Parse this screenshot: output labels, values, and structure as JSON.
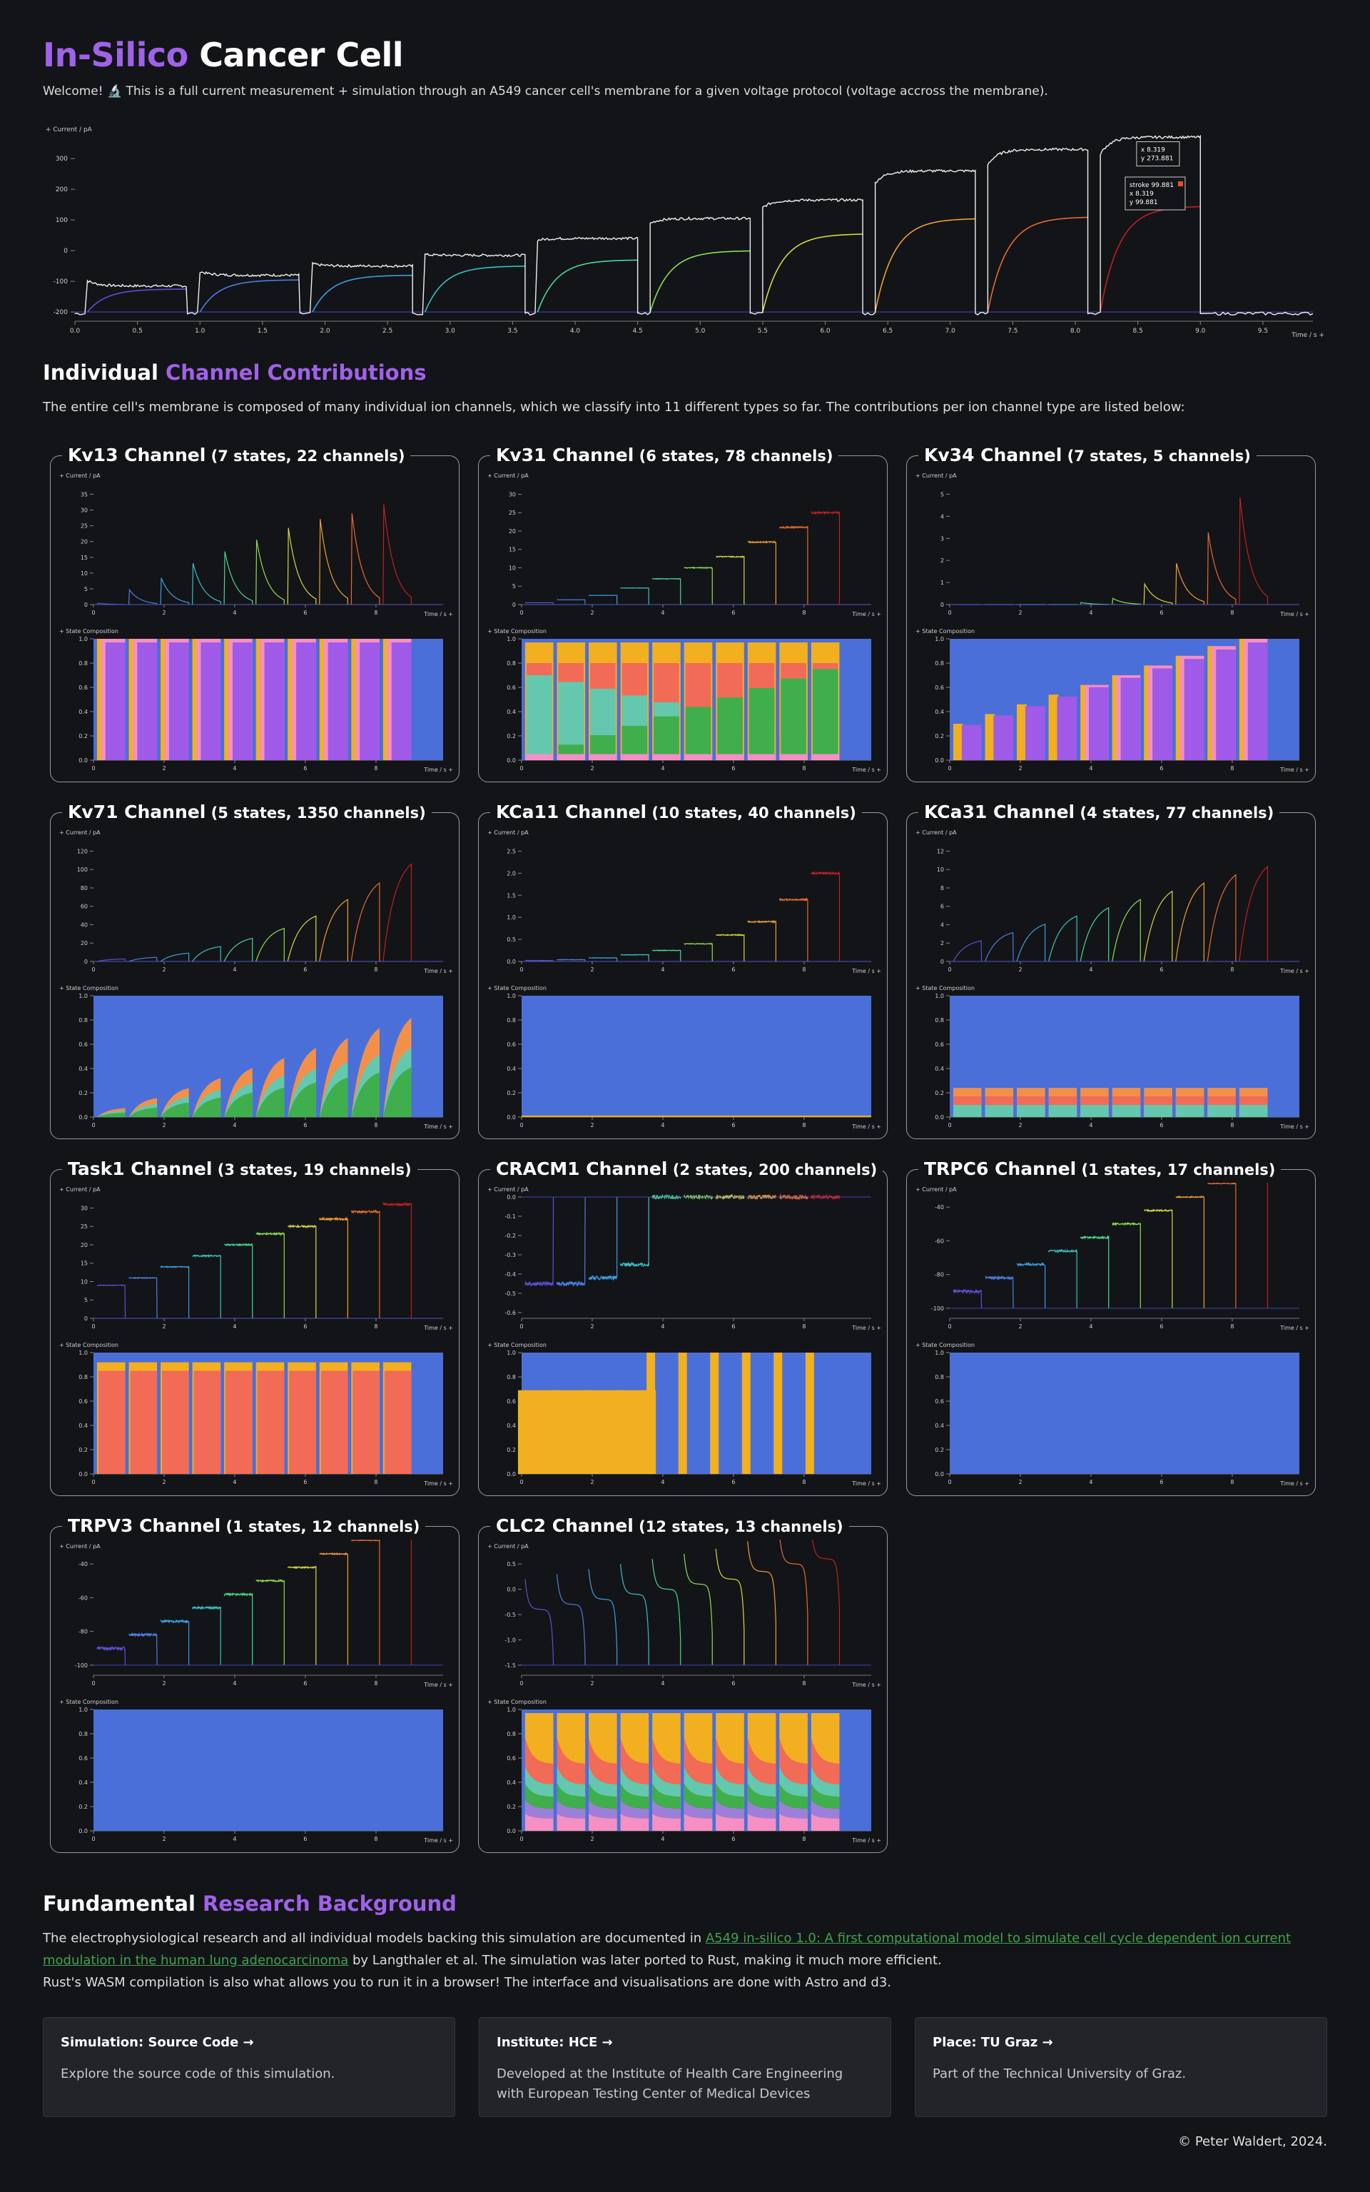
{
  "header": {
    "title_a": "In-Silico",
    "title_b": " Cancer Cell",
    "intro": "Welcome! 🔬 This is a full current measurement + simulation through an A549 cancer cell's membrane for a given voltage protocol (voltage accross the membrane)."
  },
  "main_chart": {
    "type": "line",
    "ylabel": "+ Current / pA",
    "xlabel": "Time / s +",
    "xlim": [
      0,
      9.9
    ],
    "ylim": [
      -230,
      375
    ],
    "yticks": [
      -200,
      -100,
      0,
      100,
      200,
      300
    ],
    "xticks": [
      0.0,
      0.5,
      1.0,
      1.5,
      2.0,
      2.5,
      3.0,
      3.5,
      4.0,
      4.5,
      5.0,
      5.5,
      6.0,
      6.5,
      7.0,
      7.5,
      8.0,
      8.5,
      9.0,
      9.5
    ],
    "pulse_steps": [
      1,
      2,
      3,
      4,
      5,
      6,
      7,
      8,
      9,
      10
    ],
    "measured_levels": [
      -115,
      -80,
      -50,
      -15,
      40,
      105,
      165,
      260,
      330,
      370
    ],
    "sim_levels": [
      -125,
      -95,
      -80,
      -50,
      -30,
      0,
      55,
      105,
      110,
      145
    ],
    "tooltips": [
      {
        "label_x": "x 8.319",
        "label_y": "y 273.881"
      },
      {
        "label_series": "stroke 99.881",
        "label_x": "x 8.319",
        "label_y": "y 99.881"
      }
    ]
  },
  "section2": {
    "title_a": "Individual ",
    "title_b": "Channel Contributions",
    "desc": "The entire cell's membrane is composed of many individual ion channels, which we classify into 11 different types so far. The contributions per ion channel type are listed below:"
  },
  "chart_axis_labels": {
    "current": "+ Current / pA",
    "state": "+ State Composition",
    "time": "Time / s +"
  },
  "channels": [
    {
      "name": "Kv13 Channel",
      "sub": "(7 states, 22 channels)",
      "yticks": [
        0,
        5,
        10,
        15,
        20,
        25,
        30,
        35
      ],
      "peaks": [
        0.5,
        5,
        9,
        14,
        18,
        22,
        26,
        29,
        31,
        34
      ],
      "shape": "decay",
      "state_colors": [
        "#4a6fd8",
        "#f2b020",
        "#f58fc4",
        "#a05ae8"
      ],
      "state_pattern": "kv13"
    },
    {
      "name": "Kv31 Channel",
      "sub": "(6 states, 78 channels)",
      "yticks": [
        0,
        5,
        10,
        15,
        20,
        25,
        30
      ],
      "peaks": [
        0.5,
        1.3,
        2.5,
        4.5,
        7,
        10,
        13,
        17,
        21,
        25
      ],
      "shape": "step",
      "state_colors": [
        "#4a6fd8",
        "#f2b020",
        "#f26b56",
        "#63c8ae",
        "#3fae4c",
        "#f58fc4"
      ],
      "state_pattern": "kv31"
    },
    {
      "name": "Kv34 Channel",
      "sub": "(7 states, 5 channels)",
      "yticks": [
        0,
        1,
        2,
        3,
        4,
        5
      ],
      "peaks": [
        0,
        0,
        0,
        0,
        0.1,
        0.3,
        1,
        2,
        3.5,
        5.2
      ],
      "shape": "decay",
      "state_colors": [
        "#4a6fd8",
        "#f2b020",
        "#f58fc4",
        "#a05ae8"
      ],
      "state_pattern": "kv34"
    },
    {
      "name": "Kv71 Channel",
      "sub": "(5 states, 1350 channels)",
      "yticks": [
        0,
        20,
        40,
        60,
        80,
        100,
        120
      ],
      "peaks": [
        3,
        5,
        10,
        18,
        28,
        40,
        55,
        75,
        95,
        118
      ],
      "shape": "rise",
      "state_colors": [
        "#4a6fd8",
        "#f2904a",
        "#63c8ae",
        "#3fae4c"
      ],
      "state_pattern": "kv71"
    },
    {
      "name": "KCa11 Channel",
      "sub": "(10 states, 40 channels)",
      "yticks": [
        0,
        0.5,
        1.0,
        1.5,
        2.0,
        2.5
      ],
      "peaks": [
        0.02,
        0.04,
        0.08,
        0.15,
        0.25,
        0.4,
        0.6,
        0.9,
        1.4,
        2.0
      ],
      "shape": "step",
      "state_colors": [
        "#4a6fd8",
        "#f2b020"
      ],
      "state_pattern": "flat"
    },
    {
      "name": "KCa31 Channel",
      "sub": "(4 states, 77 channels)",
      "yticks": [
        0,
        2,
        4,
        6,
        8,
        10,
        12
      ],
      "peaks": [
        2.5,
        3.5,
        4.5,
        5.5,
        6.5,
        7.5,
        8.5,
        9.5,
        10.5,
        11.5
      ],
      "shape": "rise",
      "state_colors": [
        "#4a6fd8",
        "#f2904a",
        "#f26b56",
        "#63c8ae"
      ],
      "state_pattern": "kca31"
    },
    {
      "name": "Task1 Channel",
      "sub": "(3 states, 19 channels)",
      "yticks": [
        0,
        5,
        10,
        15,
        20,
        25,
        30
      ],
      "peaks": [
        9,
        11,
        14,
        17,
        20,
        23,
        25,
        27,
        29,
        31
      ],
      "shape": "step",
      "state_colors": [
        "#4a6fd8",
        "#f2b020",
        "#f26b56"
      ],
      "state_pattern": "task1"
    },
    {
      "name": "CRACM1 Channel",
      "sub": "(2 states, 200 channels)",
      "yticks": [
        -0.6,
        -0.5,
        -0.4,
        -0.3,
        -0.2,
        -0.1,
        0.0
      ],
      "peaks": [
        -0.45,
        -0.45,
        -0.42,
        -0.35,
        0,
        0,
        0,
        0,
        0,
        0
      ],
      "shape": "neg",
      "state_colors": [
        "#4a6fd8",
        "#f2b020"
      ],
      "state_pattern": "cracm1"
    },
    {
      "name": "TRPC6 Channel",
      "sub": "(1 states, 17 channels)",
      "yticks": [
        -100,
        -80,
        -60,
        -40
      ],
      "peaks": [
        -90,
        -82,
        -74,
        -66,
        -58,
        -50,
        -42,
        -34,
        -26,
        -18
      ],
      "shape": "step",
      "state_colors": [
        "#4a6fd8"
      ],
      "state_pattern": "one"
    },
    {
      "name": "TRPV3 Channel",
      "sub": "(1 states, 12 channels)",
      "yticks": [
        -100,
        -80,
        -60,
        -40
      ],
      "peaks": [
        -90,
        -82,
        -74,
        -66,
        -58,
        -50,
        -42,
        -34,
        -26,
        -18
      ],
      "shape": "step",
      "state_colors": [
        "#4a6fd8"
      ],
      "state_pattern": "one"
    },
    {
      "name": "CLC2 Channel",
      "sub": "(12 states, 13 channels)",
      "yticks": [
        -1.5,
        -1.0,
        -0.5,
        0.0,
        0.5
      ],
      "peaks": [
        -0.4,
        -0.3,
        -0.2,
        -0.1,
        0,
        0.1,
        0.2,
        0.35,
        0.5,
        0.6
      ],
      "shape": "clc",
      "state_colors": [
        "#4a6fd8",
        "#f2b020",
        "#f26b56",
        "#63c8ae",
        "#3fae4c",
        "#9e7fd8",
        "#f58fc4"
      ],
      "state_pattern": "clc2"
    }
  ],
  "state_yticks": [
    0.0,
    0.2,
    0.4,
    0.6,
    0.8,
    1.0
  ],
  "channel_xticks": [
    0,
    2,
    4,
    6,
    8
  ],
  "series_colors": [
    "#5a50d8",
    "#4a7fe0",
    "#3aa0e0",
    "#3ac0c0",
    "#4ad890",
    "#8ae050",
    "#d8d840",
    "#f0a030",
    "#e86a30",
    "#c02020"
  ],
  "section3": {
    "title_a": "Fundamental ",
    "title_b": "Research Background",
    "desc_1": "The electrophysiological research and all individual models backing this simulation are documented in ",
    "link": "A549 in-silico 1.0: A first computational model to simulate cell cycle dependent ion current modulation in the human lung adenocarcinoma",
    "desc_2": " by Langthaler et al. The simulation was later ported to Rust, making it much more efficient.",
    "desc_3": "Rust's WASM compilation is also what allows you to run it in a browser! The interface and visualisations are done with Astro and d3."
  },
  "info_cards": [
    {
      "title": "Simulation: Source Code →",
      "desc": "Explore the source code of this simulation."
    },
    {
      "title": "Institute: HCE →",
      "desc": "Developed at the Institute of Health Care Engineering with European Testing Center of Medical Devices"
    },
    {
      "title": "Place: TU Graz →",
      "desc": "Part of the Technical University of Graz."
    }
  ],
  "footer": "© Peter Waldert, 2024."
}
